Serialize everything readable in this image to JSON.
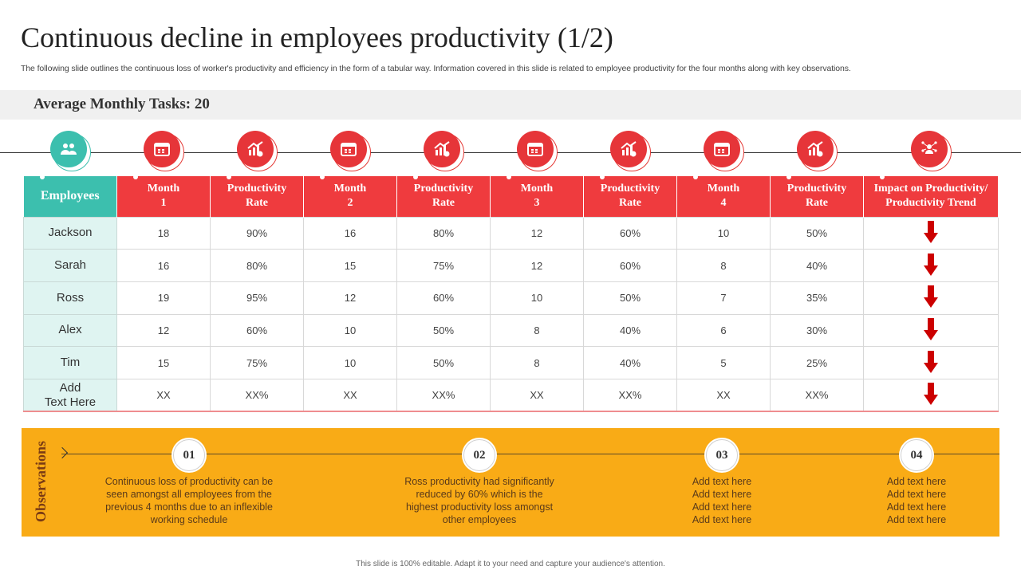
{
  "title": "Continuous decline in employees productivity (1/2)",
  "subtitle": "The following slide outlines the continuous loss of worker's productivity and efficiency in the form of a tabular way. Information covered in this slide is related to employee productivity for the four months along with key observations.",
  "band": {
    "label": "Average Monthly Tasks:",
    "value": "20"
  },
  "header_icons": [
    "people-icon",
    "calendar-icon",
    "chart-icon",
    "calendar-icon",
    "chart-icon",
    "calendar-icon",
    "chart-icon",
    "calendar-icon",
    "chart-icon",
    "person-network-icon"
  ],
  "table": {
    "headers": [
      {
        "l1": "Employees",
        "l2": ""
      },
      {
        "l1": "Month",
        "l2": "1"
      },
      {
        "l1": "Productivity",
        "l2": "Rate"
      },
      {
        "l1": "Month",
        "l2": "2"
      },
      {
        "l1": "Productivity",
        "l2": "Rate"
      },
      {
        "l1": "Month",
        "l2": "3"
      },
      {
        "l1": "Productivity",
        "l2": "Rate"
      },
      {
        "l1": "Month",
        "l2": "4"
      },
      {
        "l1": "Productivity",
        "l2": "Rate"
      },
      {
        "l1": "Impact on Productivity/",
        "l2": "Productivity Trend"
      }
    ],
    "rows": [
      {
        "name": "Jackson",
        "values": [
          "18",
          "90%",
          "16",
          "80%",
          "12",
          "60%",
          "10",
          "50%"
        ],
        "trend": "down"
      },
      {
        "name": "Sarah",
        "values": [
          "16",
          "80%",
          "15",
          "75%",
          "12",
          "60%",
          "8",
          "40%"
        ],
        "trend": "down"
      },
      {
        "name": "Ross",
        "values": [
          "19",
          "95%",
          "12",
          "60%",
          "10",
          "50%",
          "7",
          "35%"
        ],
        "trend": "down"
      },
      {
        "name": "Alex",
        "values": [
          "12",
          "60%",
          "10",
          "50%",
          "8",
          "40%",
          "6",
          "30%"
        ],
        "trend": "down"
      },
      {
        "name": "Tim",
        "values": [
          "15",
          "75%",
          "10",
          "50%",
          "8",
          "40%",
          "5",
          "25%"
        ],
        "trend": "down"
      },
      {
        "name": "Add\nText Here",
        "values": [
          "XX",
          "XX%",
          "XX",
          "XX%",
          "XX",
          "XX%",
          "XX",
          "XX%"
        ],
        "trend": "down"
      }
    ]
  },
  "observations": {
    "label": "Observations",
    "items": [
      {
        "num": "01",
        "text": "Continuous loss of productivity can be\nseen amongst all employees from the\nprevious 4 months due to an inflexible\nworking schedule"
      },
      {
        "num": "02",
        "text": "Ross productivity had significantly\nreduced by 60% which is the\nhighest productivity loss amongst\nother employees"
      },
      {
        "num": "03",
        "text": "Add text here\nAdd text here\nAdd text here\nAdd text here"
      },
      {
        "num": "04",
        "text": "Add text here\nAdd text here\nAdd text here\nAdd text here"
      }
    ]
  },
  "footer": "This slide is 100% editable. Adapt it to your need and capture your audience's attention.",
  "colors": {
    "red": "#ef3b3e",
    "teal": "#3cbfae",
    "orange": "#f9ab16",
    "arrow": "#cc0000",
    "name_bg": "#dff4f1"
  }
}
